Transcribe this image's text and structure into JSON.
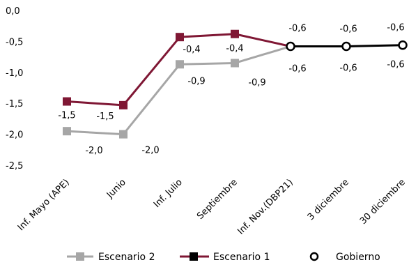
{
  "chart_data": {
    "type": "line",
    "categories": [
      "Inf. Mayo (APE)",
      "Junio",
      "Inf. Julio",
      "Septiembre",
      "Inf. Nov.(DBP21)",
      "3 diciembre",
      "30 diciembre"
    ],
    "ylim": [
      -2.5,
      0.0
    ],
    "yticks": [
      "0,0",
      "-0,5",
      "-1,0",
      "-1,5",
      "-2,0",
      "-2,5"
    ],
    "grid": false,
    "legend_position": "bottom",
    "series": [
      {
        "name": "Escenario 2",
        "color": "#a6a6a6",
        "marker": "square",
        "values": [
          -1.95,
          -2.0,
          -0.87,
          -0.85,
          -0.58,
          null,
          null
        ],
        "labels": [
          "-2,0",
          "-2,0",
          "-0,9",
          "-0,9",
          null,
          null,
          null
        ]
      },
      {
        "name": "Escenario 1",
        "color": "#7f1734",
        "marker": "square",
        "values": [
          -1.47,
          -1.53,
          -0.43,
          -0.38,
          -0.58,
          null,
          null
        ],
        "labels": [
          "-1,5",
          "-1,5",
          "-0,4",
          "-0,4",
          null,
          null,
          null
        ]
      },
      {
        "name": "Gobierno",
        "color": "#000000",
        "marker": "circle-open",
        "values": [
          null,
          null,
          null,
          null,
          -0.58,
          -0.58,
          -0.56
        ],
        "labels": [
          null,
          null,
          null,
          null,
          "-0,6",
          "-0,6",
          "-0,6"
        ]
      }
    ],
    "extra_labels": [
      "-0,6",
      "-0,6",
      "-0,6"
    ]
  }
}
